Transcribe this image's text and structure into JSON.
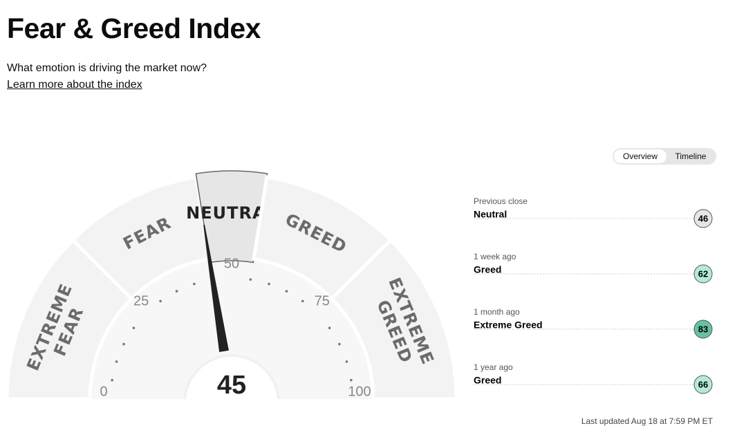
{
  "header": {
    "title": "Fear & Greed Index",
    "subtitle": "What emotion is driving the market now?",
    "link": "Learn more about the index"
  },
  "gauge": {
    "value": 45,
    "range": [
      0,
      100
    ],
    "ticks": [
      0,
      25,
      50,
      75,
      100
    ],
    "zones": [
      "EXTREME FEAR",
      "FEAR",
      "NEUTRAL",
      "GREED",
      "EXTREME GREED"
    ]
  },
  "tabs": [
    "Overview",
    "Timeline"
  ],
  "history": [
    {
      "label": "Previous close",
      "sentiment": "Neutral",
      "value": 46,
      "color": "#e6e6e6"
    },
    {
      "label": "1 week ago",
      "sentiment": "Greed",
      "value": 62,
      "color": "#b3eadc"
    },
    {
      "label": "1 month ago",
      "sentiment": "Extreme Greed",
      "value": 83,
      "color": "#66c1a1"
    },
    {
      "label": "1 year ago",
      "sentiment": "Greed",
      "value": 66,
      "color": "#b3eadc"
    }
  ],
  "updated": "Last updated Aug 18 at 7:59 PM ET"
}
